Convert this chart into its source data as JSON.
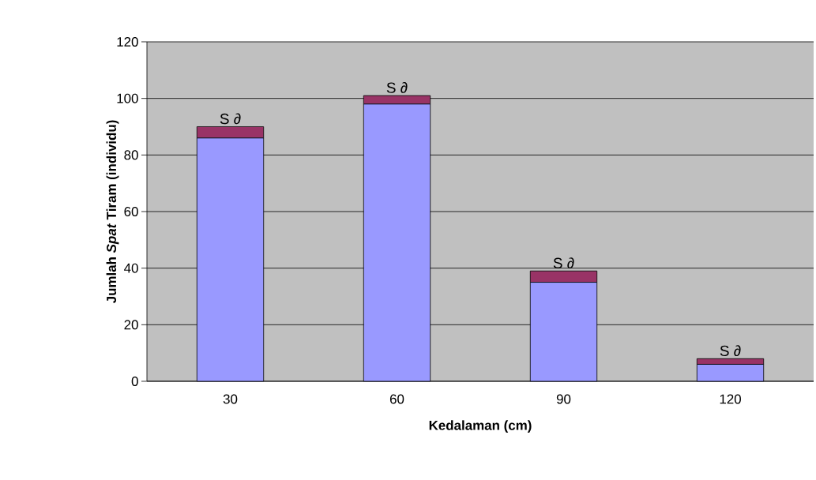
{
  "chart_data": {
    "type": "bar",
    "stacked": true,
    "xlabel": "Kedalaman (cm)",
    "ylabel": "Jumlah *Spat* Tiram (individu)",
    "categories": [
      "30",
      "60",
      "90",
      "120"
    ],
    "series": [
      {
        "color": "#9999ff",
        "values": [
          86,
          98,
          35,
          6
        ]
      },
      {
        "color": "#993366",
        "values": [
          4,
          3,
          4,
          2
        ]
      }
    ],
    "ylim": [
      0,
      120
    ],
    "yticks": [
      0,
      20,
      40,
      60,
      80,
      100,
      120
    ],
    "grid": "y",
    "annotations": [
      {
        "text": "S ∂",
        "x": "30",
        "y": 90
      },
      {
        "text": "S ∂",
        "x": "60",
        "y": 101
      },
      {
        "text": "S ∂",
        "x": "90",
        "y": 39
      },
      {
        "text": "S ∂",
        "x": "120",
        "y": 8
      }
    ]
  }
}
